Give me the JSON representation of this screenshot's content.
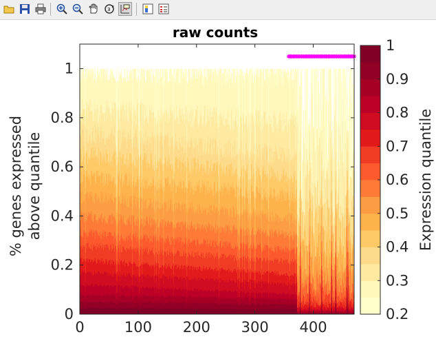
{
  "toolbar": {
    "buttons": [
      {
        "id": "open",
        "icon": "open-folder-icon"
      },
      {
        "id": "save",
        "icon": "save-disk-icon"
      },
      {
        "id": "print",
        "icon": "printer-icon"
      },
      {
        "id": "zoom-in",
        "icon": "zoom-in-icon"
      },
      {
        "id": "zoom-out",
        "icon": "zoom-out-icon"
      },
      {
        "id": "pan",
        "icon": "pan-hand-icon"
      },
      {
        "id": "rotate",
        "icon": "rotate-3d-icon"
      },
      {
        "id": "data-cursor",
        "icon": "data-cursor-icon",
        "active": true
      },
      {
        "id": "colorbar",
        "icon": "insert-colorbar-icon"
      },
      {
        "id": "legend",
        "icon": "insert-legend-icon"
      }
    ]
  },
  "chart_data": {
    "type": "area",
    "title": "raw counts",
    "xlabel": "",
    "ylabel": [
      "% genes expressed",
      "above quantile"
    ],
    "xlim": [
      0,
      470
    ],
    "ylim": [
      0,
      1.1
    ],
    "xticks": [
      0,
      100,
      200,
      300,
      400
    ],
    "yticks": [
      0,
      0.2,
      0.4,
      0.6,
      0.8,
      1
    ],
    "n_samples": 470,
    "drop_index": 372,
    "quantile_levels": [
      0.2,
      0.25,
      0.3,
      0.35,
      0.4,
      0.45,
      0.5,
      0.55,
      0.6,
      0.65,
      0.7,
      0.75,
      0.8,
      0.85,
      0.9,
      0.95
    ],
    "level_colors": [
      "#ffffcc",
      "#fff7bc",
      "#fee9a1",
      "#fedb8a",
      "#fec966",
      "#feb24c",
      "#fd9d43",
      "#fd7a37",
      "#fc5a2d",
      "#f03c24",
      "#e31a1c",
      "#cf0c22",
      "#bd0026",
      "#a60026",
      "#920026",
      "#800026"
    ],
    "fraction_start": [
      1.0,
      0.99,
      0.83,
      0.74,
      0.65,
      0.56,
      0.48,
      0.4,
      0.33,
      0.28,
      0.22,
      0.17,
      0.12,
      0.08,
      0.05,
      0.025
    ],
    "fraction_end": [
      1.0,
      0.97,
      0.78,
      0.64,
      0.56,
      0.48,
      0.39,
      0.32,
      0.26,
      0.21,
      0.16,
      0.12,
      0.08,
      0.06,
      0.04,
      0.02
    ],
    "fraction_after_drop": [
      1.0,
      0.8,
      0.58,
      0.44,
      0.35,
      0.27,
      0.2,
      0.14,
      0.09,
      0.06,
      0.04,
      0.025,
      0.015,
      0.01,
      0.005,
      0.002
    ],
    "marker_y": 1.05,
    "marker_x_range": [
      358,
      470
    ],
    "marker_color": "#ff00ff",
    "colorbar": {
      "label": "Expression quantile",
      "range": [
        0.2,
        1
      ],
      "ticks": [
        0.2,
        0.3,
        0.4,
        0.5,
        0.6,
        0.7,
        0.8,
        0.9,
        1
      ],
      "tick_labels": [
        "0.2",
        "0.3",
        "0.4",
        "0.5",
        "0.6",
        "0.7",
        "0.8",
        "0.9",
        "1"
      ]
    }
  }
}
